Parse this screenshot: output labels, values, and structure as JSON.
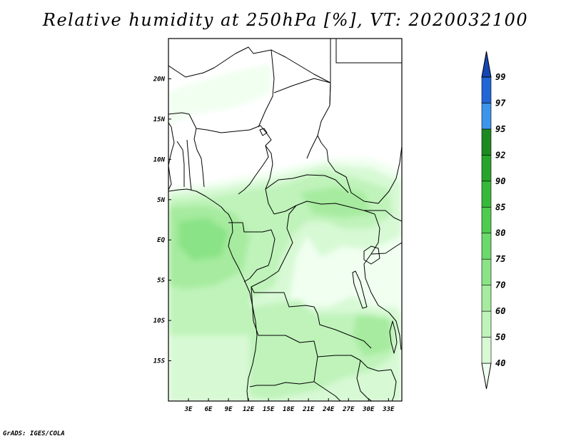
{
  "title": "Relative humidity at 250hPa [%], VT: 2020032100",
  "credit": "GrADS: IGES/COLA",
  "map": {
    "lon_range": [
      0,
      35
    ],
    "lat_range": [
      -20,
      25
    ],
    "lon_ticks": [
      "3E",
      "6E",
      "9E",
      "12E",
      "15E",
      "18E",
      "21E",
      "24E",
      "27E",
      "30E",
      "33E"
    ],
    "lat_ticks": [
      "20N",
      "15N",
      "10N",
      "5N",
      "EQ",
      "5S",
      "10S",
      "15S"
    ]
  },
  "colorbar": {
    "levels": [
      "40",
      "50",
      "60",
      "70",
      "75",
      "80",
      "85",
      "90",
      "92",
      "95",
      "97",
      "99"
    ],
    "colors": [
      "#f0fff0",
      "#d7f9d4",
      "#bff3ba",
      "#a6eb9f",
      "#8ae386",
      "#6bd96b",
      "#4fcb4f",
      "#38b83a",
      "#26a42b",
      "#1c8a21",
      "#3c95ea",
      "#2166d7",
      "#1447b4"
    ]
  },
  "colors": {
    "border": "#000000",
    "frame": "#000000"
  }
}
